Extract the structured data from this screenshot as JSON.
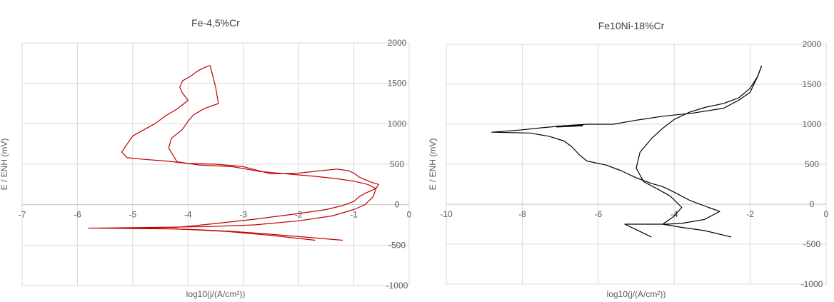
{
  "chart_data": [
    {
      "type": "line",
      "title": "Fe-4,5%Cr",
      "xlabel": "log10(j/(A/cm²))",
      "ylabel": "E / ENH (mV)",
      "xlim": [
        -7,
        0
      ],
      "ylim": [
        -1000,
        2000
      ],
      "xticks": [
        -7,
        -6,
        -5,
        -4,
        -3,
        -2,
        -1,
        0
      ],
      "yticks": [
        -1000,
        -500,
        0,
        500,
        1000,
        1500,
        2000
      ],
      "xtick_labels": [
        "-7",
        "-6",
        "-5",
        "-4",
        "-3",
        "-2",
        "-1",
        "0"
      ],
      "ytick_labels": [
        "-1000",
        "-500",
        "0",
        "500",
        "1000",
        "1500",
        "2000"
      ],
      "grid": true,
      "color": "#c00000",
      "series": [
        {
          "x": [
            -1.7,
            -2.5,
            -3.3,
            -4.2,
            -5.0,
            -5.8,
            -5.0,
            -4.2,
            -3.6,
            -2.8,
            -2.0,
            -1.5,
            -1.2,
            -1.0,
            -0.9,
            -0.8,
            -0.7,
            -0.6,
            -0.55,
            -0.7,
            -0.9,
            -1.0,
            -1.1,
            -1.3,
            -1.6,
            -2.0,
            -2.5,
            -3.0,
            -3.5,
            -4.0,
            -4.4,
            -4.8,
            -5.1,
            -5.2,
            -5.0,
            -4.6,
            -4.4,
            -4.2,
            -4.0,
            -4.1,
            -4.15,
            -4.1,
            -3.95,
            -3.85,
            -3.75,
            -3.65,
            -3.6
          ],
          "y": [
            -440,
            -380,
            -330,
            -300,
            -290,
            -290,
            -290,
            -280,
            -240,
            -180,
            -110,
            -60,
            -10,
            40,
            100,
            140,
            170,
            200,
            250,
            280,
            340,
            390,
            420,
            440,
            420,
            390,
            380,
            470,
            500,
            510,
            540,
            560,
            580,
            650,
            850,
            1000,
            1100,
            1180,
            1290,
            1380,
            1450,
            1530,
            1590,
            1640,
            1680,
            1710,
            1720
          ]
        },
        {
          "x": [
            -1.2,
            -1.9,
            -2.6,
            -3.2,
            -3.8,
            -4.3,
            -5.0,
            -5.6,
            -4.5,
            -3.6,
            -2.8,
            -2.0,
            -1.4,
            -1.0,
            -0.8,
            -0.65,
            -0.6,
            -0.75,
            -1.0,
            -1.3,
            -1.7,
            -2.2,
            -2.7,
            -3.2,
            -3.8,
            -4.2,
            -4.35,
            -4.3,
            -4.1,
            -4.0,
            -3.9,
            -3.7,
            -3.45,
            -3.5,
            -3.6
          ],
          "y": [
            -440,
            -400,
            -360,
            -330,
            -310,
            -300,
            -295,
            -290,
            -280,
            -270,
            -250,
            -200,
            -140,
            -60,
            0,
            100,
            200,
            250,
            290,
            320,
            350,
            380,
            410,
            470,
            490,
            530,
            700,
            820,
            930,
            1030,
            1110,
            1190,
            1250,
            1450,
            1720
          ]
        }
      ]
    },
    {
      "type": "line",
      "title": "Fe10Ni-18%Cr",
      "xlabel": "log10(j/(A/cm²))",
      "ylabel": "E / ENH (mV)",
      "xlim": [
        -10,
        0
      ],
      "ylim": [
        -1000,
        2000
      ],
      "xticks": [
        -10,
        -8,
        -6,
        -4,
        -2,
        0
      ],
      "yticks": [
        -1000,
        -500,
        0,
        500,
        1000,
        1500,
        2000
      ],
      "xtick_labels": [
        "-10",
        "-8",
        "-6",
        "-4",
        "-2",
        "0"
      ],
      "ytick_labels": [
        "-1000",
        "-500",
        "0",
        "500",
        "1000",
        "1500",
        "2000"
      ],
      "grid": true,
      "color": "#000000",
      "series": [
        {
          "x": [
            -4.6,
            -5.3,
            -5.0,
            -4.5,
            -4.2,
            -3.8,
            -3.2,
            -2.8,
            -3.1,
            -3.6,
            -4.0,
            -4.3,
            -4.6,
            -5.0,
            -5.4,
            -5.8,
            -6.3,
            -6.5,
            -6.7,
            -6.9,
            -7.3,
            -7.8,
            -8.8,
            -8.0,
            -7.4,
            -6.9,
            -6.3,
            -5.6,
            -5.0,
            -4.3,
            -3.5,
            -2.7,
            -2.3,
            -2.0,
            -1.8,
            -1.7
          ],
          "y": [
            -410,
            -250,
            -250,
            -250,
            -250,
            -240,
            -190,
            -90,
            -40,
            50,
            150,
            220,
            260,
            330,
            420,
            490,
            540,
            620,
            720,
            790,
            850,
            890,
            900,
            930,
            960,
            980,
            1000,
            1000,
            1050,
            1100,
            1140,
            1200,
            1300,
            1400,
            1600,
            1730
          ]
        },
        {
          "x": [
            -2.5,
            -3.2,
            -3.8,
            -4.3,
            -4.0,
            -3.8,
            -4.1,
            -4.4,
            -4.8,
            -5.0,
            -4.9,
            -4.6,
            -4.3,
            -4.0,
            -3.6,
            -3.2,
            -2.7,
            -2.3,
            -2.0,
            -1.8,
            -1.7
          ],
          "y": [
            -410,
            -330,
            -290,
            -250,
            -150,
            -40,
            100,
            180,
            280,
            450,
            650,
            820,
            950,
            1060,
            1150,
            1210,
            1260,
            1330,
            1450,
            1600,
            1730
          ]
        },
        {
          "x": [
            -7.1,
            -6.4
          ],
          "y": [
            970,
            985
          ]
        }
      ]
    }
  ]
}
